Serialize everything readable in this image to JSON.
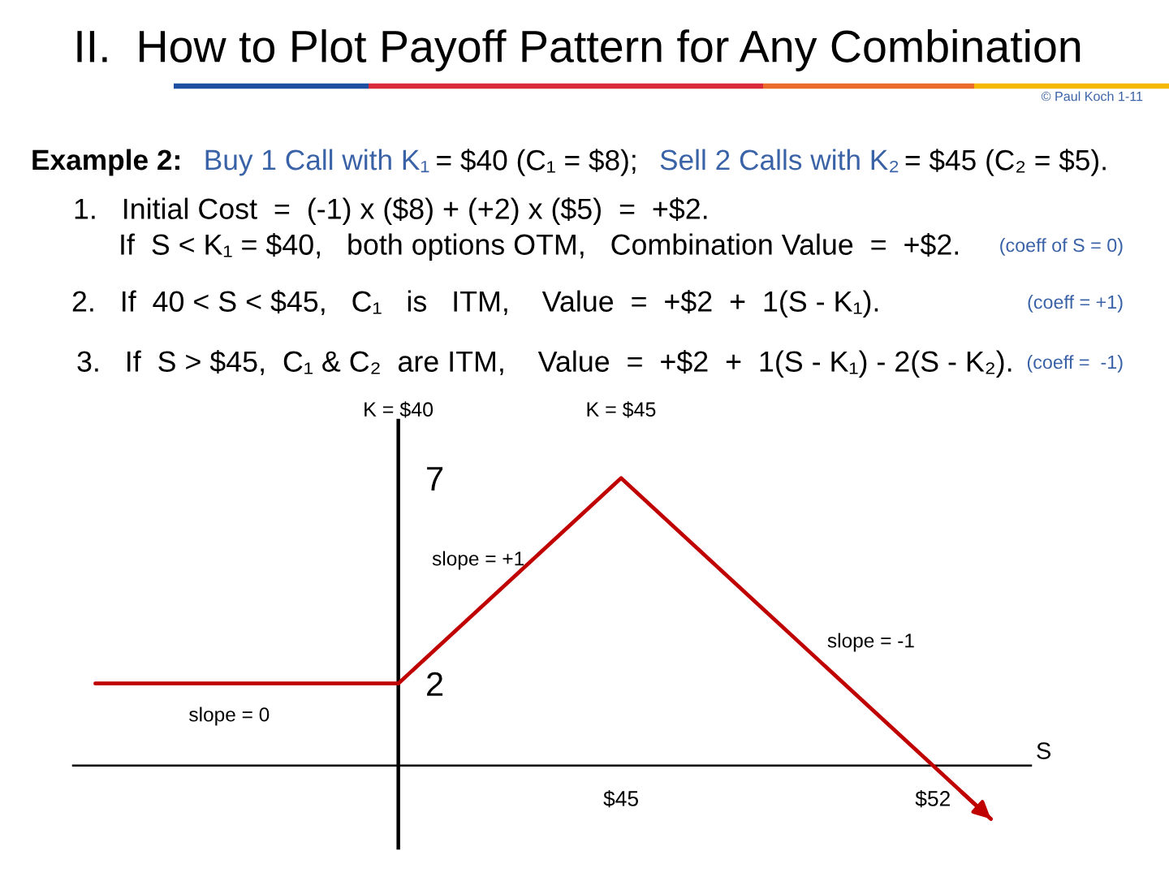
{
  "chart_data": {
    "type": "line",
    "title": "II.  How to Plot Payoff Pattern for Any Combination",
    "xlabel": "S",
    "x": [
      33.2,
      40,
      45,
      52,
      53.3
    ],
    "values": [
      2,
      2,
      7,
      0,
      -1.3
    ],
    "color": "#c00000",
    "xlim": [
      32.7,
      54.2
    ],
    "ylim": [
      -2,
      8.4
    ],
    "xticks": [
      {
        "value": 40,
        "label": null
      },
      {
        "value": 45,
        "label": "$45"
      },
      {
        "value": 52,
        "label": "$52"
      }
    ],
    "yticks": [
      2,
      7
    ],
    "annotations": [
      "© Paul Koch 1-11",
      "Example 2:",
      "Buy 1 Call with K₁",
      "= $40 (C₁ = $8);",
      "Sell 2 Calls with K₂",
      "= $45 (C₂ = $5).",
      "1.   Initial Cost  =  (-1) x ($8) + (+2) x ($5)  =  +$2.",
      "If  S < K₁ = $40,   both options OTM,   Combination Value  =  +$2.",
      "(coeff of S = 0)",
      "2.   If  40 < S < $45,   C₁   is   ITM,    Value  =  +$2  +  1(S - K₁).",
      "(coeff = +1)",
      "3.   If  S > $45,  C₁ & C₂  are ITM,    Value  =  +$2  +  1(S - K₁) - 2(S - K₂).",
      "(coeff =  -1)",
      "K = $40",
      "K = $45",
      "slope = +1",
      "slope = -1",
      "slope = 0"
    ],
    "grid": false,
    "marker": "none",
    "line_style": "solid"
  }
}
